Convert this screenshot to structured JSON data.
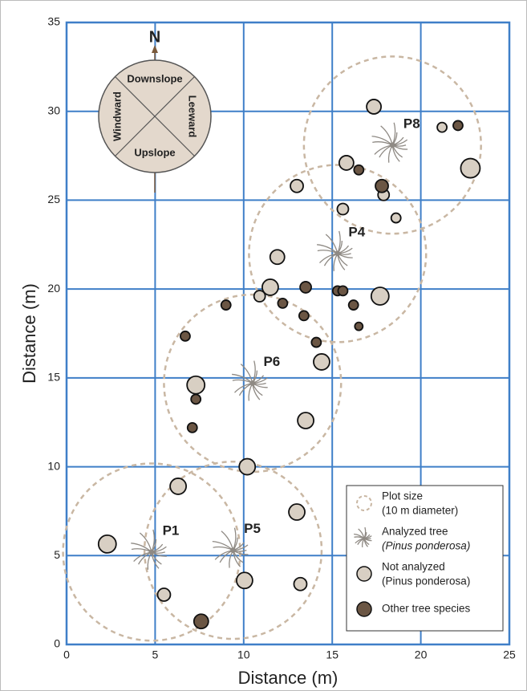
{
  "chart_data": {
    "type": "scatter",
    "x_label": "Distance (m)",
    "y_label": "Distance (m)",
    "xlim": [
      0,
      25
    ],
    "ylim": [
      0,
      35
    ],
    "xticks": [
      0,
      5,
      10,
      15,
      20,
      25
    ],
    "yticks": [
      0,
      5,
      10,
      15,
      20,
      25,
      30,
      35
    ],
    "grid": true,
    "grid_color": "#3f7fc8",
    "legend": "bottom-right",
    "series": [
      {
        "name": "Plot size",
        "name_note": "(10 m diameter)",
        "kind": "plot",
        "color": "#c9b7a3",
        "radius": 5,
        "x": [
          18.4,
          15.3,
          10.5,
          4.8,
          9.4
        ],
        "values": [
          28.1,
          22.0,
          14.7,
          5.2,
          5.3
        ]
      },
      {
        "name": "Analyzed tree",
        "name_note": "(Pinus ponderosa)",
        "kind": "tree",
        "color": "#8f8a84",
        "x": [
          18.4,
          15.3,
          10.5,
          4.8,
          9.4
        ],
        "values": [
          28.1,
          22.0,
          14.7,
          5.2,
          5.3
        ],
        "labels": [
          "P8",
          "P4",
          "P6",
          "P1",
          "P5"
        ]
      },
      {
        "name": "Not analyzed",
        "name_note": "(Pinus ponderosa)",
        "kind": "circle",
        "color": "#d8cfc3",
        "x": [
          17.35,
          22.8,
          21.2,
          15.8,
          13.0,
          17.9,
          15.6,
          18.6,
          11.9,
          11.5,
          10.9,
          17.7,
          14.4,
          7.3,
          13.5,
          10.2,
          6.3,
          13.0,
          2.3,
          10.05,
          13.2,
          5.5
        ],
        "values": [
          30.26,
          26.8,
          29.1,
          27.1,
          25.8,
          25.3,
          24.5,
          24.0,
          21.8,
          20.1,
          19.6,
          19.6,
          15.9,
          14.6,
          12.6,
          10.0,
          8.9,
          7.45,
          5.65,
          3.6,
          3.4,
          2.8
        ],
        "sizes": [
          9,
          12,
          6,
          9,
          8,
          7,
          7,
          6,
          9,
          10,
          7,
          11,
          10,
          11,
          10,
          10,
          10,
          10,
          11,
          10,
          8,
          8
        ]
      },
      {
        "name": "Other tree species",
        "kind": "circle",
        "color": "#6b5644",
        "x": [
          22.1,
          16.5,
          17.8,
          9.0,
          12.2,
          13.5,
          13.4,
          15.3,
          15.6,
          16.2,
          16.5,
          14.1,
          6.7,
          7.3,
          7.1,
          7.6
        ],
        "values": [
          29.2,
          26.7,
          25.8,
          19.1,
          19.2,
          20.1,
          18.5,
          19.9,
          19.9,
          19.1,
          17.9,
          17.0,
          17.35,
          13.8,
          12.2,
          1.3
        ],
        "sizes": [
          6,
          6,
          8,
          6,
          6,
          7,
          6,
          6,
          6,
          6,
          5,
          6,
          6,
          6,
          6,
          9
        ]
      }
    ],
    "compass": {
      "north": "N",
      "top": "Downslope",
      "right": "Leeward",
      "bottom": "Upslope",
      "left": "Windward"
    }
  }
}
